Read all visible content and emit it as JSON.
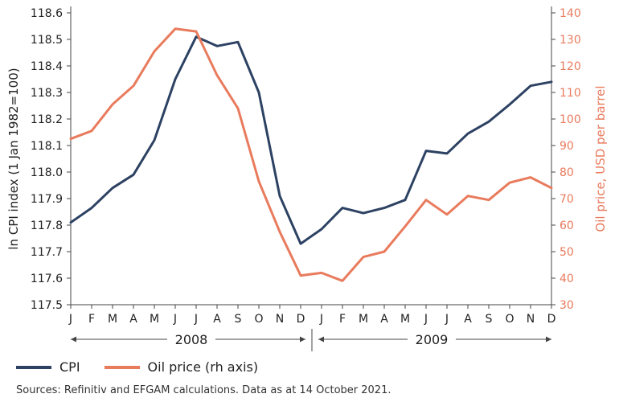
{
  "chart_data": {
    "type": "line",
    "title": "",
    "categories": [
      "J",
      "F",
      "M",
      "A",
      "M",
      "J",
      "J",
      "A",
      "S",
      "O",
      "N",
      "D",
      "J",
      "F",
      "M",
      "A",
      "M",
      "J",
      "J",
      "A",
      "S",
      "O",
      "N",
      "D"
    ],
    "year_labels": [
      "2008",
      "2009"
    ],
    "ylabel_left": "ln CPI index (1 Jan 1982=100)",
    "ylabel_right": "Oil price, USD per barrel",
    "ylim_left": [
      117.5,
      118.6
    ],
    "yticks_left": [
      "117.5",
      "117.6",
      "117.7",
      "117.8",
      "117.9",
      "118.0",
      "118.1",
      "118.2",
      "118.3",
      "118.4",
      "118.5",
      "118.6"
    ],
    "ylim_right": [
      30,
      140
    ],
    "yticks_right": [
      "30",
      "40",
      "50",
      "60",
      "70",
      "80",
      "90",
      "100",
      "110",
      "120",
      "130",
      "140"
    ],
    "series": [
      {
        "name": "CPI",
        "axis": "left",
        "color": "#2d4263",
        "values": [
          117.81,
          117.865,
          117.94,
          117.99,
          118.12,
          118.35,
          118.51,
          118.475,
          118.49,
          118.3,
          117.91,
          117.73,
          117.785,
          117.865,
          117.845,
          117.865,
          117.895,
          118.08,
          118.07,
          118.145,
          118.19,
          118.255,
          118.325,
          118.34
        ]
      },
      {
        "name": "Oil price (rh axis)",
        "axis": "right",
        "color": "#e97b5d",
        "values": [
          92.5,
          95.5,
          105.5,
          112.5,
          125.5,
          134,
          133,
          116.5,
          104,
          76.5,
          57.5,
          41,
          42,
          39,
          48,
          50,
          59.5,
          69.5,
          64,
          71,
          69.5,
          76,
          78,
          74
        ]
      }
    ]
  },
  "legend": {
    "cpi_label": "CPI",
    "oil_label": "Oil price (rh axis)"
  },
  "source_text": "Sources: Refinitiv and EFGAM calculations. Data as at 14 October 2021."
}
